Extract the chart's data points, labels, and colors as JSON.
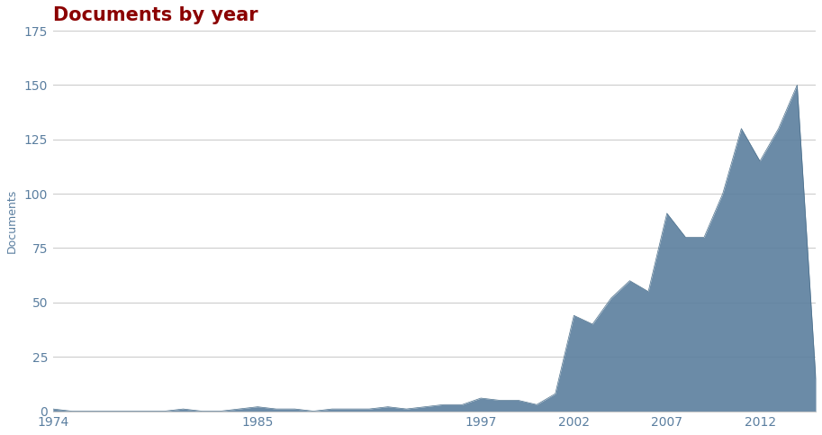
{
  "title": "Documents by year",
  "title_color": "#8b0000",
  "ylabel": "Documents",
  "fill_color": "#5b7f9e",
  "fill_alpha": 0.9,
  "line_color": "#4a6e8a",
  "background_color": "#ffffff",
  "grid_color": "#cccccc",
  "tick_color": "#5b7fa0",
  "years": [
    1974,
    1975,
    1976,
    1977,
    1978,
    1979,
    1980,
    1981,
    1982,
    1983,
    1984,
    1985,
    1986,
    1987,
    1988,
    1989,
    1990,
    1991,
    1992,
    1993,
    1994,
    1995,
    1996,
    1997,
    1998,
    1999,
    2000,
    2001,
    2002,
    2003,
    2004,
    2005,
    2006,
    2007,
    2008,
    2009,
    2010,
    2011,
    2012,
    2013,
    2014,
    2015
  ],
  "values": [
    1,
    0,
    0,
    0,
    0,
    0,
    0,
    1,
    0,
    0,
    1,
    2,
    1,
    1,
    0,
    1,
    1,
    1,
    2,
    1,
    2,
    3,
    3,
    6,
    5,
    5,
    3,
    8,
    44,
    40,
    52,
    60,
    55,
    91,
    80,
    80,
    100,
    130,
    115,
    130,
    150,
    15
  ],
  "xticks": [
    1974,
    1985,
    1997,
    2002,
    2007,
    2012
  ],
  "yticks": [
    0,
    25,
    50,
    75,
    100,
    125,
    150,
    175
  ],
  "ylim": [
    0,
    175
  ],
  "xlim": [
    1974,
    2015
  ],
  "title_fontsize": 15,
  "tick_fontsize": 10,
  "ylabel_fontsize": 9
}
